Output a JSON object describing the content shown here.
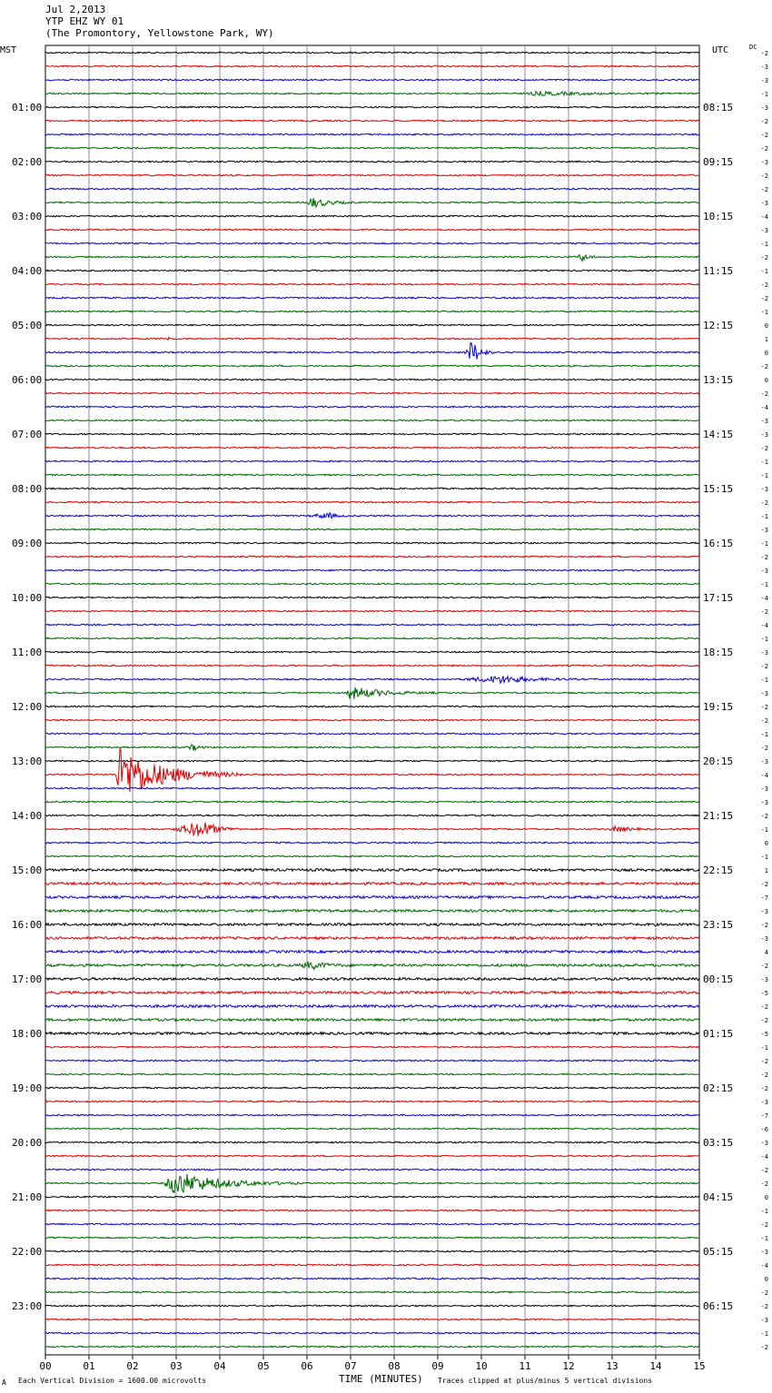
{
  "header": {
    "date": "Jul 2,2013",
    "station": "YTP EHZ WY 01",
    "location": "(The Promontory, Yellowstone Park, WY)"
  },
  "left_zone": "MST",
  "right_zone": "UTC",
  "dc_label": "DC",
  "footer": {
    "scale_note": "Each Vertical Division = 1600.00 microvolts",
    "xlabel": "TIME (MINUTES)",
    "clip_note": "Traces clipped at plus/minus 5 vertical divisions",
    "corner_mark": "A"
  },
  "colors": {
    "trace_cycle": [
      "#000000",
      "#dd0000",
      "#0000dd",
      "#006600"
    ],
    "grid": "#8888aa"
  },
  "chart_data": {
    "type": "line",
    "title": "YTP EHZ WY 01",
    "xlabel": "TIME (MINUTES)",
    "xlim": [
      0,
      15
    ],
    "x_ticks": [
      "00",
      "01",
      "02",
      "03",
      "04",
      "05",
      "06",
      "07",
      "08",
      "09",
      "10",
      "11",
      "12",
      "13",
      "14",
      "15"
    ],
    "left_hour_labels": [
      "01:00",
      "02:00",
      "03:00",
      "04:00",
      "05:00",
      "06:00",
      "07:00",
      "08:00",
      "09:00",
      "10:00",
      "11:00",
      "12:00",
      "13:00",
      "14:00",
      "15:00",
      "16:00",
      "17:00",
      "18:00",
      "19:00",
      "20:00",
      "21:00",
      "22:00",
      "23:00"
    ],
    "right_hour_labels": [
      "08:15",
      "09:15",
      "10:15",
      "11:15",
      "12:15",
      "13:15",
      "14:15",
      "15:15",
      "16:15",
      "17:15",
      "18:15",
      "19:15",
      "20:15",
      "21:15",
      "22:15",
      "23:15",
      "00:15",
      "01:15",
      "02:15",
      "03:15",
      "04:15",
      "05:15",
      "06:15"
    ],
    "dc_offsets": [
      -2,
      -3,
      -3,
      -1,
      -3,
      -2,
      -2,
      -2,
      -3,
      -2,
      -2,
      -3,
      -4,
      -3,
      -1,
      -2,
      -1,
      -2,
      -2,
      -1,
      0,
      1,
      0,
      -2,
      0,
      -2,
      -4,
      -3,
      -3,
      -2,
      -1,
      -1,
      -3,
      -2,
      -1,
      -3,
      -1,
      -2,
      -3,
      -1,
      -4,
      -2,
      -4,
      -1,
      -3,
      -2,
      -1,
      -3,
      -2,
      -2,
      -1,
      -2,
      -3,
      -4,
      -3,
      -3,
      -2,
      -1,
      0,
      -1,
      1,
      -2,
      -7,
      -3,
      -2,
      -3,
      4,
      -2,
      -3,
      -5,
      -2,
      -2,
      -5,
      -1,
      -2,
      -2,
      -2,
      -3,
      -7,
      -6,
      -3,
      -4,
      -2,
      -2,
      0,
      -1,
      -2,
      -1,
      -3,
      -4,
      0,
      -2,
      -2,
      -3,
      -1,
      -2
    ],
    "events": [
      {
        "trace": 3,
        "start": 11.0,
        "peak": 11.3,
        "end": 14.8,
        "amp": 2
      },
      {
        "trace": 11,
        "start": 6.0,
        "peak": 6.1,
        "end": 7.2,
        "amp": 6
      },
      {
        "trace": 15,
        "start": 12.2,
        "peak": 12.3,
        "end": 12.7,
        "amp": 5
      },
      {
        "trace": 21,
        "start": 2.8,
        "peak": 2.8,
        "end": 2.9,
        "amp": 6
      },
      {
        "trace": 22,
        "start": 9.6,
        "peak": 9.8,
        "end": 10.3,
        "amp": 14
      },
      {
        "trace": 34,
        "start": 6.0,
        "peak": 6.5,
        "end": 7.0,
        "amp": 3
      },
      {
        "trace": 46,
        "start": 9.5,
        "peak": 10.5,
        "end": 12.5,
        "amp": 4
      },
      {
        "trace": 47,
        "start": 6.9,
        "peak": 7.0,
        "end": 9.0,
        "amp": 7
      },
      {
        "trace": 51,
        "start": 3.2,
        "peak": 3.4,
        "end": 3.8,
        "amp": 3
      },
      {
        "trace": 53,
        "start": 1.6,
        "peak": 1.7,
        "end": 4.5,
        "amp": 30
      },
      {
        "trace": 57,
        "start": 2.9,
        "peak": 3.6,
        "end": 4.6,
        "amp": 9
      },
      {
        "trace": 57,
        "start": 12.9,
        "peak": 13.1,
        "end": 14.0,
        "amp": 3
      },
      {
        "trace": 67,
        "start": 5.8,
        "peak": 6.1,
        "end": 7.0,
        "amp": 4
      },
      {
        "trace": 83,
        "start": 2.7,
        "peak": 3.0,
        "end": 5.8,
        "amp": 13
      }
    ]
  }
}
